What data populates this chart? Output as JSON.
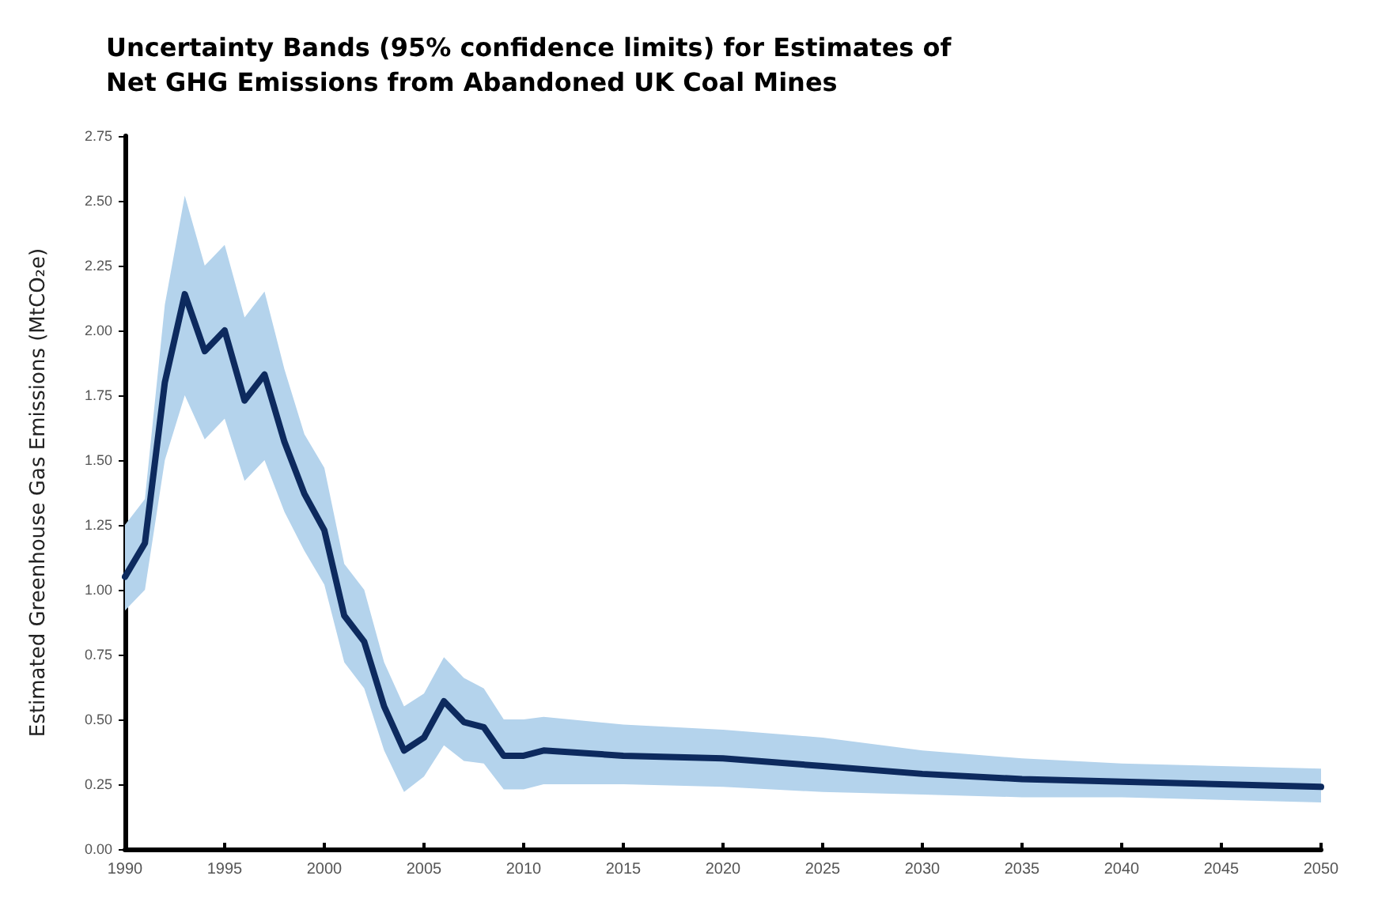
{
  "chart_data": {
    "type": "line",
    "title": "Uncertainty Bands (95% confidence limits) for Estimates of\nNet GHG Emissions from Abandoned UK Coal Mines",
    "ylabel": "Estimated Greenhouse Gas Emissions (MtCO₂e)",
    "x": [
      1990,
      1991,
      1992,
      1993,
      1994,
      1995,
      1996,
      1997,
      1998,
      1999,
      2000,
      2001,
      2002,
      2003,
      2004,
      2005,
      2006,
      2007,
      2008,
      2009,
      2010,
      2011,
      2015,
      2020,
      2025,
      2030,
      2035,
      2040,
      2045,
      2050
    ],
    "series": [
      {
        "color": "#0d2a5e",
        "values": [
          1.05,
          1.18,
          1.8,
          2.14,
          1.92,
          2.0,
          1.73,
          1.83,
          1.57,
          1.37,
          1.23,
          0.9,
          0.8,
          0.55,
          0.38,
          0.43,
          0.57,
          0.49,
          0.47,
          0.36,
          0.36,
          0.38,
          0.36,
          0.35,
          0.32,
          0.29,
          0.27,
          0.26,
          0.25,
          0.24
        ],
        "lower": [
          0.92,
          1.0,
          1.5,
          1.75,
          1.58,
          1.66,
          1.42,
          1.5,
          1.3,
          1.15,
          1.02,
          0.72,
          0.62,
          0.38,
          0.22,
          0.28,
          0.4,
          0.34,
          0.33,
          0.23,
          0.23,
          0.25,
          0.25,
          0.24,
          0.22,
          0.21,
          0.2,
          0.2,
          0.19,
          0.18
        ],
        "upper": [
          1.25,
          1.35,
          2.1,
          2.52,
          2.25,
          2.33,
          2.05,
          2.15,
          1.85,
          1.6,
          1.47,
          1.1,
          1.0,
          0.72,
          0.55,
          0.6,
          0.74,
          0.66,
          0.62,
          0.5,
          0.5,
          0.51,
          0.48,
          0.46,
          0.43,
          0.38,
          0.35,
          0.33,
          0.32,
          0.31
        ]
      }
    ],
    "xlim": [
      1990,
      2050
    ],
    "xticks": [
      1990,
      1995,
      2000,
      2005,
      2010,
      2015,
      2020,
      2025,
      2030,
      2035,
      2040,
      2045,
      2050
    ],
    "ylim": [
      0,
      2.75
    ],
    "yticks": [
      {
        "value": 0,
        "label": "0.00"
      },
      {
        "value": 0.25,
        "label": "0.25"
      },
      {
        "value": 0.5,
        "label": "0.50"
      },
      {
        "value": 0.75,
        "label": "0.75"
      },
      {
        "value": 1,
        "label": "1.00"
      },
      {
        "value": 1.25,
        "label": "1.25"
      },
      {
        "value": 1.5,
        "label": "1.50"
      },
      {
        "value": 1.75,
        "label": "1.75"
      },
      {
        "value": 2,
        "label": "2.00"
      },
      {
        "value": 2.25,
        "label": "2.25"
      },
      {
        "value": 2.5,
        "label": "2.50"
      },
      {
        "value": 2.75,
        "label": "2.75"
      }
    ],
    "marker": "none",
    "line_style": "solid"
  }
}
